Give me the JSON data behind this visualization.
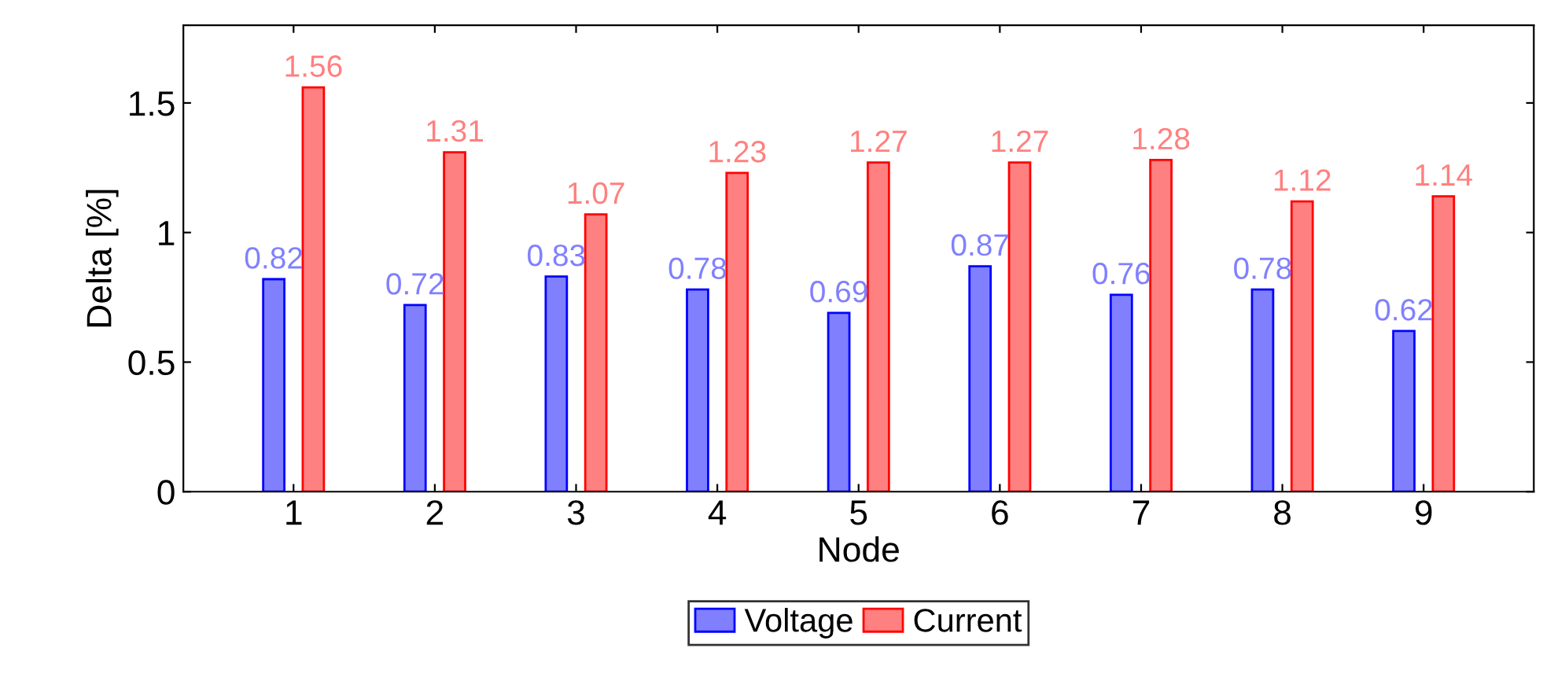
{
  "chart_data": {
    "type": "bar",
    "xlabel": "Node",
    "ylabel": "Delta [%]",
    "categories": [
      "1",
      "2",
      "3",
      "4",
      "5",
      "6",
      "7",
      "8",
      "9"
    ],
    "series": [
      {
        "name": "Voltage",
        "color": "#8080ff",
        "values": [
          0.82,
          0.72,
          0.83,
          0.78,
          0.69,
          0.87,
          0.76,
          0.78,
          0.62
        ]
      },
      {
        "name": "Current",
        "color": "#ff8080",
        "values": [
          1.56,
          1.31,
          1.07,
          1.23,
          1.27,
          1.27,
          1.28,
          1.12,
          1.14
        ]
      }
    ],
    "ylim": [
      0,
      1.8
    ],
    "yticks": [
      0,
      0.5,
      1,
      1.5
    ],
    "data_labels": true,
    "grid": false,
    "legend": "bottom"
  }
}
